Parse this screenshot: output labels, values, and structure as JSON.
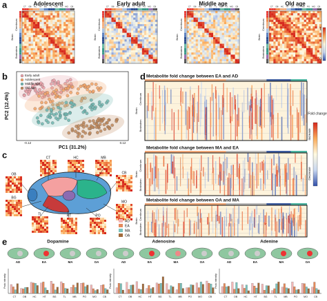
{
  "panel_labels": [
    "a",
    "b",
    "c",
    "d",
    "e"
  ],
  "a": {
    "titles": [
      "Adolescent",
      "Early adult",
      "Middle age",
      "Old age"
    ],
    "regions": [
      "Brain",
      "Cerebrum",
      "Brainstem"
    ],
    "top_labels": [
      "CT",
      "OB",
      "HC",
      "HT",
      "BG",
      "TL",
      "MB",
      "PO",
      "MO",
      "CB"
    ],
    "colorbar": [
      1,
      0
    ]
  },
  "b": {
    "legend": [
      "Early adult",
      "Adolescent",
      "Middle age",
      "Old age"
    ],
    "xlabel": "PC1 (31.2%)",
    "ylabel": "PC2 (12.4%)",
    "xticks": [
      -0.12,
      0.12
    ]
  },
  "c": {
    "regions": [
      "CT",
      "HC",
      "MB",
      "OB",
      "CB",
      "BG",
      "MO",
      "TL",
      "HT",
      "PO"
    ],
    "legend": [
      "AD",
      "EA",
      "MA",
      "OA"
    ]
  },
  "d": {
    "titles": [
      "Metabolite fold change between EA and AD",
      "Metabolite fold change between MA and EA",
      "Metabolite fold change between OA and MA"
    ],
    "regions": [
      "Brain",
      "Cerebrum",
      "Brainstem"
    ],
    "colorbar_title": "Fold change",
    "increase": "Increase",
    "decrease": "Decrease"
  },
  "e": {
    "metabolites": [
      "Dopamine",
      "Adenosine",
      "Adenine"
    ],
    "ages": [
      "AD",
      "EA",
      "MA",
      "OA"
    ],
    "regions": [
      "CT",
      "OB",
      "HC",
      "HT",
      "BG",
      "TL",
      "MB",
      "PO",
      "MO",
      "CB"
    ],
    "ylabel": "Peak intensity"
  }
}
